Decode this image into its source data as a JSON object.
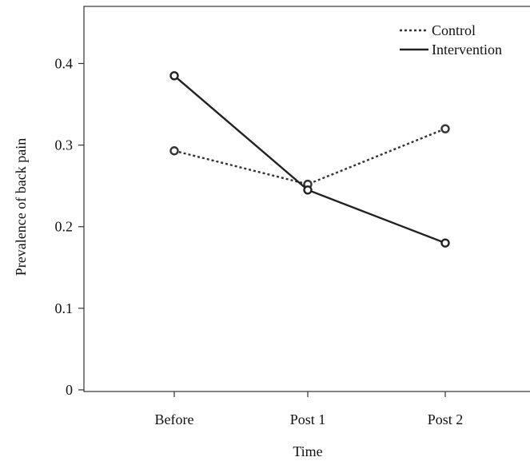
{
  "chart_data": {
    "type": "line",
    "title": "",
    "xlabel": "Time",
    "ylabel": "Prevalence of back pain",
    "categories": [
      "Before",
      "Post 1",
      "Post 2"
    ],
    "y_ticks": [
      "0",
      "0.1",
      "0.2",
      "0.3",
      "0.4"
    ],
    "ylim": [
      -0.002,
      0.47
    ],
    "grid": false,
    "legend_position": "top-right",
    "series": [
      {
        "name": "Control",
        "values": [
          0.293,
          0.252,
          0.32
        ],
        "line_style": "dotted",
        "color": "#333333"
      },
      {
        "name": "Intervention",
        "values": [
          0.385,
          0.245,
          0.18
        ],
        "line_style": "solid",
        "color": "#222222"
      }
    ]
  }
}
